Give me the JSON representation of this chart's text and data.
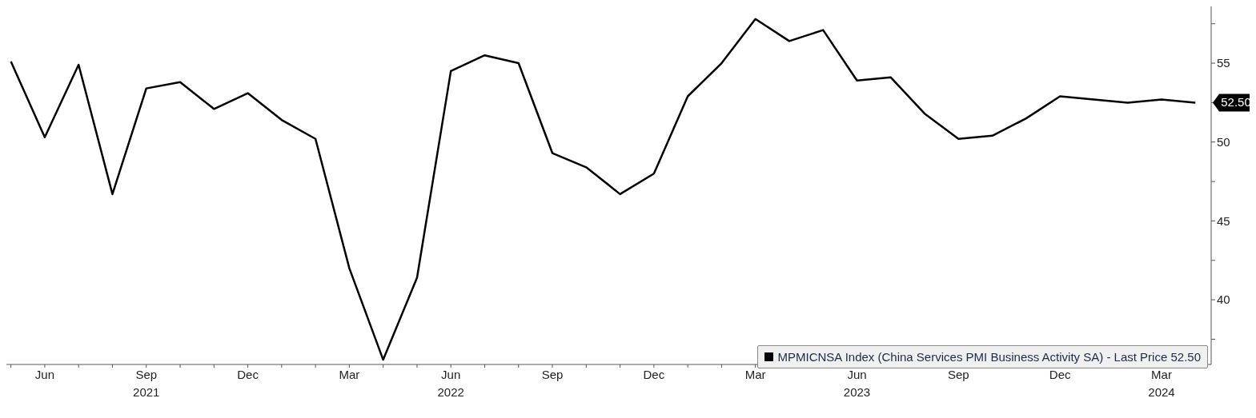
{
  "chart_data": {
    "type": "line",
    "x": [
      "2021-05",
      "2021-06",
      "2021-07",
      "2021-08",
      "2021-09",
      "2021-10",
      "2021-11",
      "2021-12",
      "2022-01",
      "2022-02",
      "2022-03",
      "2022-04",
      "2022-05",
      "2022-06",
      "2022-07",
      "2022-08",
      "2022-09",
      "2022-10",
      "2022-11",
      "2022-12",
      "2023-01",
      "2023-02",
      "2023-03",
      "2023-04",
      "2023-05",
      "2023-06",
      "2023-07",
      "2023-08",
      "2023-09",
      "2023-10",
      "2023-11",
      "2023-12",
      "2024-01",
      "2024-02",
      "2024-03",
      "2024-04"
    ],
    "series": [
      {
        "name": "MPMICNSA Index (China Services PMI Business Activity SA) - Last Price 52.50",
        "color": "#000000",
        "values": [
          55.1,
          50.3,
          54.9,
          46.7,
          53.4,
          53.8,
          52.1,
          53.1,
          51.4,
          50.2,
          42.0,
          36.2,
          41.4,
          54.5,
          55.5,
          55.0,
          49.3,
          48.4,
          46.7,
          48.0,
          52.9,
          55.0,
          57.8,
          56.4,
          57.1,
          53.9,
          54.1,
          51.8,
          50.2,
          50.4,
          51.5,
          52.9,
          52.7,
          52.5,
          52.7,
          52.5
        ]
      }
    ],
    "xlim": [
      "2021-04-27",
      "2024-04-15"
    ],
    "xticks": [
      {
        "value": "2021-05",
        "label": null
      },
      {
        "value": "2021-06",
        "label": "Jun"
      },
      {
        "value": "2021-07",
        "label": null
      },
      {
        "value": "2021-08",
        "label": null
      },
      {
        "value": "2021-09",
        "label": "Sep\n2021"
      },
      {
        "value": "2021-10",
        "label": null
      },
      {
        "value": "2021-11",
        "label": null
      },
      {
        "value": "2021-12",
        "label": "Dec"
      },
      {
        "value": "2022-01",
        "label": null
      },
      {
        "value": "2022-02",
        "label": null
      },
      {
        "value": "2022-03",
        "label": "Mar"
      },
      {
        "value": "2022-04",
        "label": null
      },
      {
        "value": "2022-05",
        "label": null
      },
      {
        "value": "2022-06",
        "label": "Jun\n2022"
      },
      {
        "value": "2022-07",
        "label": null
      },
      {
        "value": "2022-08",
        "label": null
      },
      {
        "value": "2022-09",
        "label": "Sep"
      },
      {
        "value": "2022-10",
        "label": null
      },
      {
        "value": "2022-11",
        "label": null
      },
      {
        "value": "2022-12",
        "label": "Dec"
      },
      {
        "value": "2023-01",
        "label": null
      },
      {
        "value": "2023-02",
        "label": null
      },
      {
        "value": "2023-03",
        "label": "Mar"
      },
      {
        "value": "2023-04",
        "label": null
      },
      {
        "value": "2023-05",
        "label": null
      },
      {
        "value": "2023-06",
        "label": "Jun\n2023"
      },
      {
        "value": "2023-07",
        "label": null
      },
      {
        "value": "2023-08",
        "label": null
      },
      {
        "value": "2023-09",
        "label": "Sep"
      },
      {
        "value": "2023-10",
        "label": null
      },
      {
        "value": "2023-11",
        "label": null
      },
      {
        "value": "2023-12",
        "label": "Dec"
      },
      {
        "value": "2024-01",
        "label": null
      },
      {
        "value": "2024-02",
        "label": null
      },
      {
        "value": "2024-03",
        "label": "Mar\n2024"
      },
      {
        "value": "2024-04",
        "label": null
      }
    ],
    "ylim": [
      35.9,
      58.6
    ],
    "yticks": [
      {
        "value": 37.5,
        "label": null
      },
      40,
      {
        "value": 42.5,
        "label": null
      },
      45,
      {
        "value": 47.5,
        "label": null
      },
      50,
      {
        "value": 52.5,
        "label": null
      },
      55,
      {
        "value": 57.5,
        "label": null
      }
    ],
    "annotations": [
      {
        "text": "52.50",
        "x": "2024-04",
        "y": 52.5
      }
    ],
    "legend": "bottom right",
    "grid": false,
    "marker": "none",
    "line_style": "solid"
  }
}
